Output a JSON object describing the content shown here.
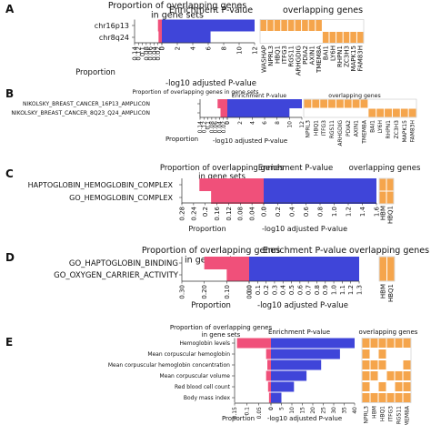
{
  "chart_data": [
    {
      "type": "bar",
      "panel_label": "A",
      "rows": [
        "chr16p13",
        "chr8q24"
      ],
      "proportion_title": "Proportion of overlapping genes in gene sets",
      "proportion_xlabel": "Proportion",
      "proportion_ticks": [
        "0.14",
        "0.12",
        "0.1",
        "0.08",
        "0.06",
        "0.04",
        "0.02",
        "0"
      ],
      "proportion_values": [
        0.02,
        0.017
      ],
      "pvalue_title": "Enrichment P-value",
      "pvalue_xlabel": "-log10 adjusted P-value",
      "pvalue_ticks": [
        "0",
        "2",
        "4",
        "6",
        "8",
        "10",
        "12"
      ],
      "pvalue_values": [
        12.5,
        6.3
      ],
      "genes_title": "overlapping genes",
      "genes": [
        "WASHAP",
        "NPRL3",
        "HBQ1",
        "ITFG3",
        "RGS11",
        "ARHGDIG",
        "PDIA2",
        "AXIN1",
        "TMEM8A",
        "BAI1",
        "LY6H",
        "RHPN1",
        "ZC3H3",
        "MAPK15",
        "FAM83H"
      ],
      "gene_matrix": [
        [
          1,
          1,
          1,
          1,
          1,
          1,
          1,
          1,
          1,
          0,
          0,
          0,
          0,
          0,
          0
        ],
        [
          0,
          0,
          0,
          0,
          0,
          0,
          0,
          0,
          0,
          1,
          1,
          1,
          1,
          1,
          1
        ]
      ],
      "colors": {
        "proportion": "#f0507a",
        "pvalue": "#3f45d9",
        "genes": "#f5a54c"
      }
    },
    {
      "type": "bar",
      "panel_label": "B",
      "rows": [
        "NIKOLSKY_BREAST_CANCER_16P13_AMPLICON",
        "NIKOLSKY_BREAST_CANCER_8Q23_Q24_AMPLICON"
      ],
      "proportion_title": "Proportion of overlapping genes in gene sets",
      "proportion_xlabel": "Proportion",
      "proportion_ticks": [
        "0.14",
        "0.12",
        "0.1",
        "0.08",
        "0.06",
        "0.04",
        "0.02",
        "0"
      ],
      "proportion_values": [
        0.05,
        0.035
      ],
      "pvalue_title": "Enrichment P-value",
      "pvalue_xlabel": "-log10 adjusted P-value",
      "pvalue_ticks": [
        "0",
        "2",
        "4",
        "6",
        "8",
        "10",
        "12"
      ],
      "pvalue_values": [
        12.8,
        10.0
      ],
      "genes_title": "overlapping genes",
      "genes": [
        "NPRL3",
        "HBQ1",
        "ITFG3",
        "RGS11",
        "ARHGDIG",
        "PDIA2",
        "AXIN1",
        "TMEM8A",
        "BAI1",
        "LY6H",
        "RHPN1",
        "ZC3H3",
        "MAPK15",
        "FAM83H"
      ],
      "gene_matrix": [
        [
          1,
          1,
          1,
          1,
          1,
          1,
          1,
          1,
          0,
          0,
          0,
          0,
          0,
          0
        ],
        [
          0,
          0,
          0,
          0,
          0,
          0,
          0,
          0,
          1,
          1,
          1,
          1,
          1,
          1
        ]
      ],
      "colors": {
        "proportion": "#f0507a",
        "pvalue": "#3f45d9",
        "genes": "#f5a54c"
      }
    },
    {
      "type": "bar",
      "panel_label": "C",
      "rows": [
        "HAPTOGLOBIN_HEMOGLOBIN_COMPLEX",
        "GO_HEMOGLOBIN_COMPLEX"
      ],
      "proportion_title": "Proportion of overlapping genes in gene sets",
      "proportion_xlabel": "Proportion",
      "proportion_ticks": [
        "0.28",
        "0.24",
        "0.2",
        "0.16",
        "0.12",
        "0.08",
        "0.04",
        "0"
      ],
      "proportion_values": [
        0.22,
        0.18
      ],
      "pvalue_title": "Enrichment P-value",
      "pvalue_xlabel": "-log10 adjusted P-value",
      "pvalue_ticks": [
        "0.0",
        "0.2",
        "0.4",
        "0.6",
        "0.8",
        "1.0",
        "1.2",
        "1.4",
        "1.6"
      ],
      "pvalue_values": [
        1.65,
        1.65
      ],
      "genes_title": "overlapping genes",
      "genes": [
        "HBM",
        "HBQ1"
      ],
      "gene_matrix": [
        [
          1,
          1
        ],
        [
          1,
          1
        ]
      ],
      "colors": {
        "proportion": "#f0507a",
        "pvalue": "#3f45d9",
        "genes": "#f5a54c"
      }
    },
    {
      "type": "bar",
      "panel_label": "D",
      "rows": [
        "GO_HAPTOGLOBIN_BINDING",
        "GO_OXYGEN_CARRIER_ACTIVITY"
      ],
      "proportion_title": "Proportion of overlapping genes in gene sets",
      "proportion_xlabel": "Proportion",
      "proportion_ticks": [
        "0.30",
        "0.20",
        "0.10",
        "0.00"
      ],
      "proportion_values": [
        0.2,
        0.1
      ],
      "pvalue_title": "Enrichment P-value",
      "pvalue_xlabel": "-log10 adjusted P-value",
      "pvalue_ticks": [
        "0.0",
        "0.1",
        "0.2",
        "0.3",
        "0.4",
        "0.5",
        "0.6",
        "0.7",
        "0.8",
        "0.9",
        "1.0",
        "1.1",
        "1.2",
        "1.3"
      ],
      "pvalue_values": [
        1.3,
        1.3
      ],
      "genes_title": "overlapping genes",
      "genes": [
        "HBM",
        "HBQ1"
      ],
      "gene_matrix": [
        [
          1,
          1
        ],
        [
          1,
          1
        ]
      ],
      "colors": {
        "proportion": "#f0507a",
        "pvalue": "#3f45d9",
        "genes": "#f5a54c"
      }
    },
    {
      "type": "bar",
      "panel_label": "E",
      "rows": [
        "Hemoglobin levels",
        "Mean corpuscular hemoglobin",
        "Mean corpuscular hemoglobin concentration",
        "Mean corpuscular volume",
        "Red blood cell count",
        "Body mass index"
      ],
      "proportion_title": "Proportion of overlapping genes in gene sets",
      "proportion_xlabel": "Proportion",
      "proportion_ticks": [
        "0.15",
        "0.1",
        "0.05",
        "0"
      ],
      "proportion_values": [
        0.14,
        0.02,
        0.015,
        0.02,
        0.012,
        0.008
      ],
      "pvalue_title": "Enrichment P-value",
      "pvalue_xlabel": "-log10 adjusted P-value",
      "pvalue_ticks": [
        "0",
        "5",
        "10",
        "15",
        "20",
        "25",
        "30",
        "35",
        "40"
      ],
      "pvalue_values": [
        40,
        33,
        24,
        17,
        11,
        5
      ],
      "genes_title": "overlapping genes",
      "genes": [
        "NPRL3",
        "HBM",
        "HBQ1",
        "ITFG3",
        "RGS11",
        "TMEM8A"
      ],
      "gene_matrix": [
        [
          1,
          1,
          1,
          1,
          1,
          1
        ],
        [
          1,
          0,
          1,
          0,
          0,
          0
        ],
        [
          1,
          1,
          1,
          0,
          0,
          1
        ],
        [
          1,
          1,
          0,
          1,
          1,
          1
        ],
        [
          1,
          0,
          1,
          0,
          1,
          1
        ],
        [
          1,
          1,
          1,
          1,
          1,
          1
        ]
      ],
      "colors": {
        "proportion": "#f0507a",
        "pvalue": "#3f45d9",
        "genes": "#f5a54c"
      }
    }
  ]
}
